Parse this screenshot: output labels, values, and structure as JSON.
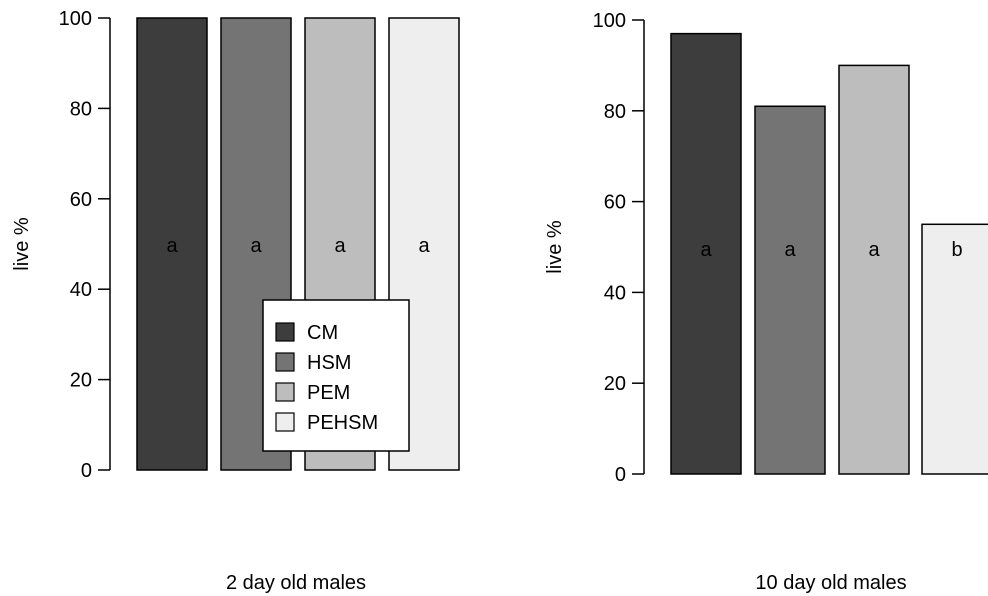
{
  "chart_data": [
    {
      "type": "bar",
      "categories": [
        "CM",
        "HSM",
        "PEM",
        "PEHSM"
      ],
      "values": [
        100,
        100,
        100,
        100
      ],
      "bar_labels": [
        "a",
        "a",
        "a",
        "a"
      ],
      "title": "",
      "xlabel": "2 day old males",
      "ylabel": "live %",
      "ylim": [
        0,
        100
      ],
      "yticks": [
        "0",
        "20",
        "40",
        "60",
        "80",
        "100"
      ],
      "grid": false,
      "legend": {
        "placement": "bottom-right",
        "entries": [
          "CM",
          "HSM",
          "PEM",
          "PEHSM"
        ]
      }
    },
    {
      "type": "bar",
      "categories": [
        "CM",
        "HSM",
        "PEM",
        "PEHSM"
      ],
      "values": [
        97,
        81,
        90,
        55
      ],
      "bar_labels": [
        "a",
        "a",
        "a",
        "b"
      ],
      "title": "",
      "xlabel": "10 day old males",
      "ylabel": "live %",
      "ylim": [
        0,
        100
      ],
      "yticks": [
        "0",
        "20",
        "40",
        "60",
        "80",
        "100"
      ],
      "grid": false
    }
  ],
  "colors": {
    "CM": "#3d3d3d",
    "HSM": "#747474",
    "PEM": "#bdbdbd",
    "PEHSM": "#eeeeee",
    "outline": "#000000"
  }
}
